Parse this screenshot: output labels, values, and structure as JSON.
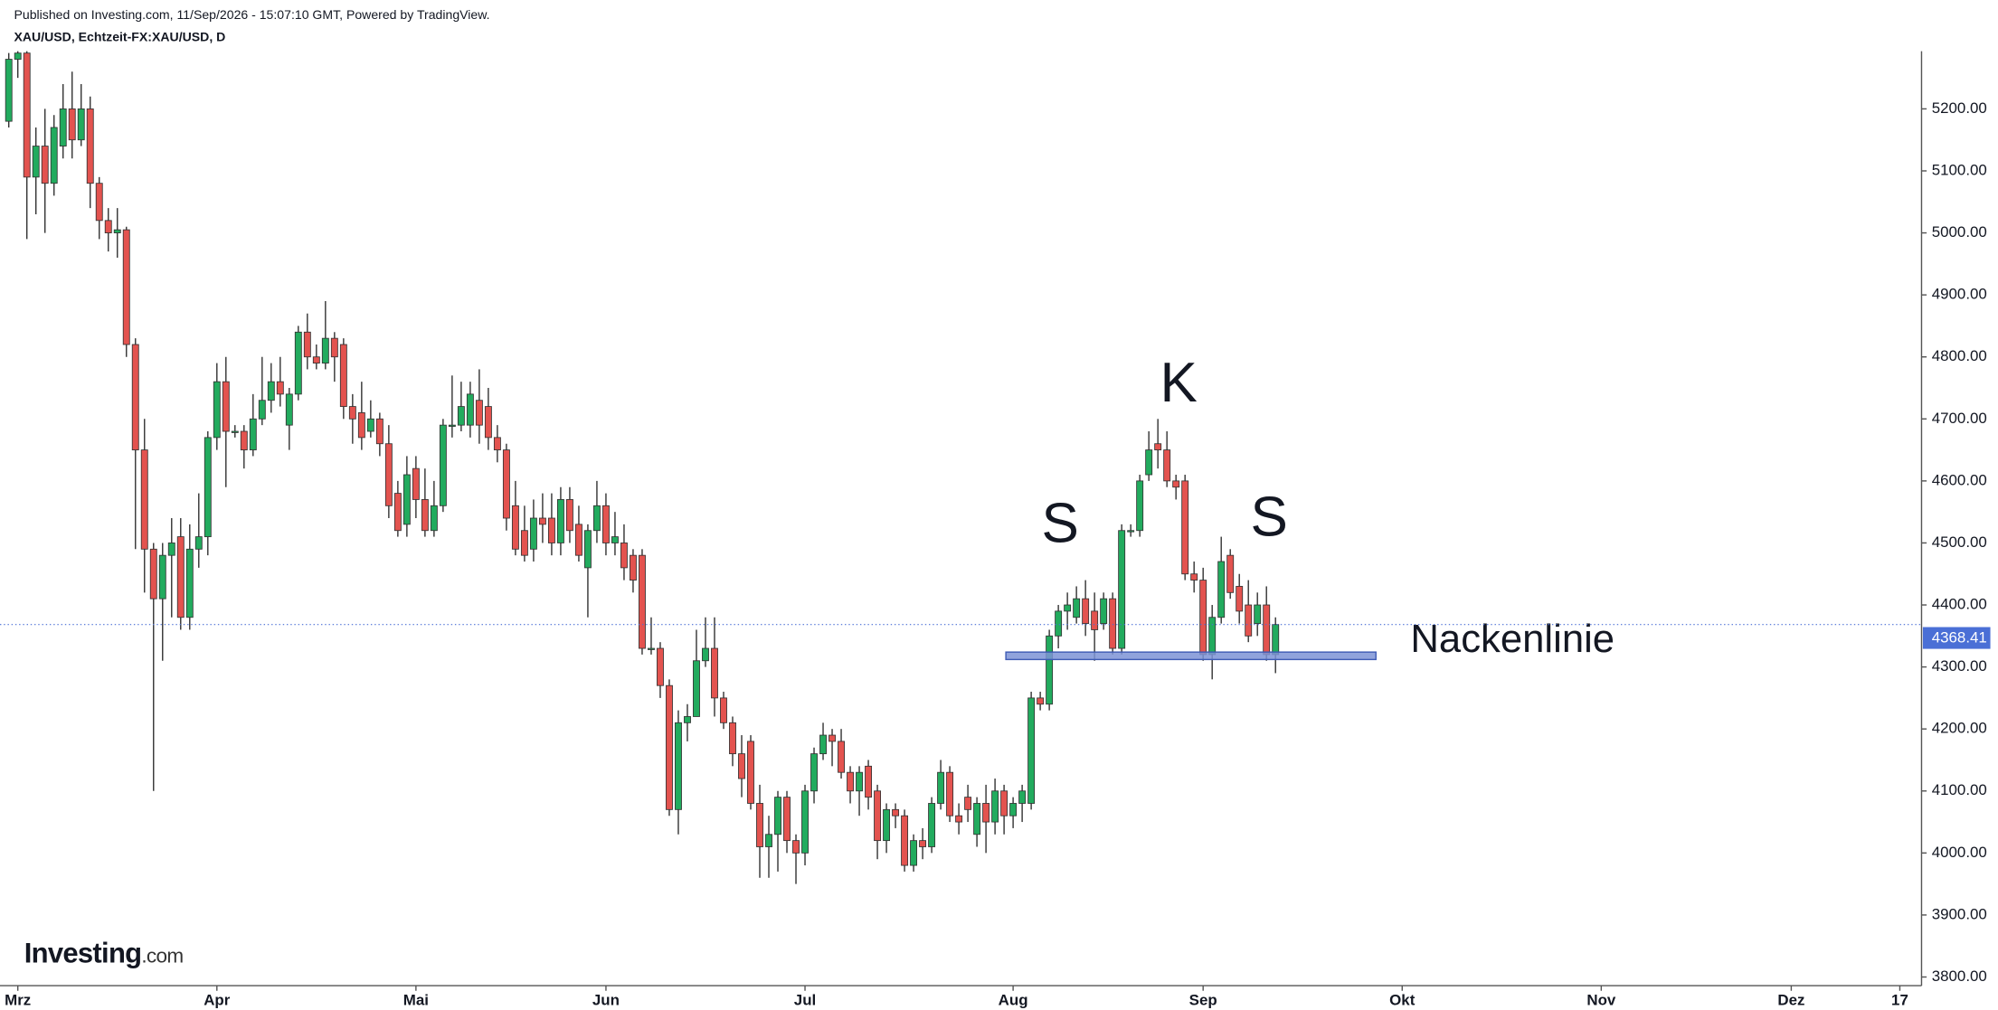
{
  "chart_data": {
    "type": "candlestick",
    "source": "Published on Investing.com, 11/Sep/2026 - 15:07:10 GMT, Powered by TradingView.",
    "title": "XAU/USD, Echtzeit-FX:XAU/USD, D",
    "logo": [
      "Investing",
      ".com"
    ],
    "up_color": "#22ab5e",
    "down_color": "#e3534f",
    "x": [
      -1,
      0,
      1,
      2,
      3,
      4,
      5,
      6,
      7,
      8,
      9,
      10,
      11,
      12,
      13,
      14,
      15,
      16,
      17,
      18,
      19,
      20,
      21,
      22,
      23,
      24,
      25,
      26,
      27,
      28,
      29,
      30,
      31,
      32,
      33,
      34,
      35,
      36,
      37,
      38,
      39,
      40,
      41,
      42,
      43,
      44,
      45,
      46,
      47,
      48,
      49,
      50,
      51,
      52,
      53,
      54,
      55,
      56,
      57,
      58,
      59,
      60,
      61,
      62,
      63,
      64,
      65,
      66,
      67,
      68,
      69,
      70,
      71,
      72,
      73,
      74,
      75,
      76,
      77,
      78,
      79,
      80,
      81,
      82,
      83,
      84,
      85,
      86,
      87,
      88,
      89,
      90,
      91,
      92,
      93,
      94,
      95,
      96,
      97,
      98,
      99,
      100,
      101,
      102,
      103,
      104,
      105,
      106,
      107,
      108,
      109,
      110,
      111,
      112,
      113,
      114,
      115,
      116,
      117,
      118,
      119,
      120,
      121,
      122,
      123,
      124,
      125,
      126,
      127,
      128,
      129,
      130,
      131,
      132,
      133,
      134,
      135,
      136,
      137,
      138,
      139
    ],
    "open": [
      5180,
      5280,
      5290,
      5090,
      5140,
      5080,
      5140,
      5200,
      5150,
      5200,
      5080,
      5020,
      5000,
      5005,
      4820,
      4650,
      4490,
      4410,
      4480,
      4510,
      4380,
      4490,
      4510,
      4670,
      4760,
      4680,
      4680,
      4650,
      4700,
      4730,
      4760,
      4690,
      4740,
      4840,
      4800,
      4790,
      4830,
      4820,
      4720,
      4710,
      4680,
      4700,
      4660,
      4580,
      4530,
      4620,
      4570,
      4520,
      4560,
      4690,
      4690,
      4690,
      4730,
      4720,
      4670,
      4650,
      4560,
      4520,
      4490,
      4540,
      4540,
      4500,
      4570,
      4530,
      4460,
      4520,
      4560,
      4500,
      4500,
      4480,
      4480,
      4330,
      4330,
      4270,
      4070,
      4210,
      4220,
      4310,
      4330,
      4250,
      4210,
      4160,
      4180,
      4080,
      4010,
      4030,
      4090,
      4020,
      4000,
      4100,
      4160,
      4190,
      4180,
      4130,
      4100,
      4140,
      4100,
      4020,
      4070,
      4060,
      3980,
      4020,
      4010,
      4080,
      4130,
      4060,
      4090,
      4030,
      4080,
      4050,
      4100,
      4060,
      4080,
      4080,
      4250,
      4240,
      4350,
      4390,
      4380,
      4410,
      4390,
      4370,
      4410,
      4330,
      4520,
      4520,
      4610,
      4660,
      4650,
      4600,
      4600,
      4450,
      4440,
      4320,
      4380,
      4480,
      4430,
      4400,
      4370,
      4400,
      4320
    ],
    "high": [
      5290,
      5330,
      5330,
      5170,
      5200,
      5190,
      5240,
      5260,
      5240,
      5220,
      5090,
      5040,
      5040,
      5010,
      4830,
      4700,
      4500,
      4500,
      4540,
      4540,
      4530,
      4580,
      4680,
      4790,
      4800,
      4690,
      4690,
      4740,
      4800,
      4790,
      4800,
      4750,
      4850,
      4870,
      4820,
      4890,
      4840,
      4830,
      4740,
      4760,
      4730,
      4710,
      4690,
      4600,
      4640,
      4640,
      4620,
      4600,
      4700,
      4770,
      4760,
      4760,
      4780,
      4750,
      4690,
      4660,
      4600,
      4560,
      4570,
      4580,
      4580,
      4590,
      4590,
      4560,
      4530,
      4600,
      4580,
      4550,
      4530,
      4490,
      4490,
      4380,
      4340,
      4280,
      4230,
      4240,
      4360,
      4380,
      4380,
      4260,
      4220,
      4190,
      4190,
      4110,
      4060,
      4100,
      4100,
      4030,
      4110,
      4170,
      4210,
      4200,
      4200,
      4140,
      4140,
      4150,
      4110,
      4080,
      4080,
      4070,
      4030,
      4040,
      4090,
      4150,
      4140,
      4080,
      4110,
      4090,
      4110,
      4120,
      4110,
      4090,
      4110,
      4260,
      4260,
      4360,
      4400,
      4420,
      4430,
      4440,
      4420,
      4420,
      4420,
      4530,
      4530,
      4610,
      4680,
      4700,
      4680,
      4610,
      4610,
      4470,
      4460,
      4400,
      4510,
      4490,
      4450,
      4440,
      4420,
      4430,
      4380
    ],
    "low": [
      5170,
      5250,
      4990,
      5030,
      5000,
      5060,
      5120,
      5120,
      5140,
      5040,
      4990,
      4970,
      4960,
      4800,
      4490,
      4420,
      4100,
      4310,
      4380,
      4360,
      4360,
      4460,
      4480,
      4650,
      4590,
      4670,
      4620,
      4640,
      4690,
      4710,
      4720,
      4650,
      4730,
      4780,
      4780,
      4780,
      4760,
      4700,
      4660,
      4650,
      4670,
      4640,
      4540,
      4510,
      4510,
      4540,
      4510,
      4510,
      4550,
      4670,
      4680,
      4670,
      4660,
      4650,
      4630,
      4520,
      4480,
      4470,
      4470,
      4500,
      4480,
      4480,
      4500,
      4470,
      4380,
      4500,
      4480,
      4480,
      4440,
      4420,
      4320,
      4320,
      4250,
      4060,
      4030,
      4180,
      4220,
      4300,
      4220,
      4200,
      4140,
      4090,
      4070,
      3960,
      3960,
      3970,
      4000,
      3950,
      3980,
      4080,
      4150,
      4140,
      4120,
      4080,
      4060,
      4070,
      3990,
      4000,
      4040,
      3970,
      3970,
      3990,
      4000,
      4070,
      4050,
      4030,
      4050,
      4010,
      4000,
      4030,
      4030,
      4040,
      4050,
      4070,
      4230,
      4230,
      4330,
      4360,
      4370,
      4350,
      4310,
      4360,
      4320,
      4320,
      4510,
      4510,
      4600,
      4620,
      4590,
      4570,
      4440,
      4420,
      4310,
      4280,
      4370,
      4410,
      4370,
      4340,
      4350,
      4310,
      4290
    ],
    "close": [
      5280,
      5290,
      5090,
      5140,
      5080,
      5170,
      5200,
      5150,
      5200,
      5080,
      5020,
      5000,
      5005,
      4820,
      4650,
      4490,
      4410,
      4480,
      4500,
      4380,
      4490,
      4510,
      4670,
      4760,
      4680,
      4680,
      4650,
      4700,
      4730,
      4760,
      4740,
      4740,
      4840,
      4800,
      4790,
      4830,
      4800,
      4720,
      4700,
      4670,
      4700,
      4660,
      4560,
      4520,
      4610,
      4570,
      4520,
      4560,
      4690,
      4690,
      4720,
      4740,
      4690,
      4670,
      4650,
      4540,
      4490,
      4480,
      4540,
      4530,
      4500,
      4570,
      4520,
      4480,
      4520,
      4560,
      4500,
      4510,
      4460,
      4440,
      4330,
      4330,
      4270,
      4070,
      4210,
      4220,
      4310,
      4330,
      4250,
      4210,
      4160,
      4120,
      4080,
      4010,
      4030,
      4090,
      4020,
      4000,
      4100,
      4160,
      4190,
      4180,
      4130,
      4100,
      4130,
      4090,
      4020,
      4070,
      4060,
      3980,
      4020,
      4010,
      4080,
      4130,
      4060,
      4050,
      4070,
      4080,
      4050,
      4100,
      4060,
      4080,
      4100,
      4250,
      4240,
      4350,
      4390,
      4400,
      4410,
      4370,
      4360,
      4410,
      4330,
      4520,
      4520,
      4600,
      4650,
      4650,
      4600,
      4590,
      4450,
      4440,
      4320,
      4380,
      4470,
      4420,
      4390,
      4350,
      4400,
      4320,
      4368.41
    ],
    "xlim": [
      -1.97,
      210.4
    ],
    "xticks": [
      {
        "value": 0,
        "label": "Mrz"
      },
      {
        "value": 22,
        "label": "Apr"
      },
      {
        "value": 44,
        "label": "Mai"
      },
      {
        "value": 65,
        "label": "Jun"
      },
      {
        "value": 87,
        "label": "Jul"
      },
      {
        "value": 110,
        "label": "Aug"
      },
      {
        "value": 131,
        "label": "Sep"
      },
      {
        "value": 153,
        "label": "Okt"
      },
      {
        "value": 175,
        "label": "Nov"
      },
      {
        "value": 196,
        "label": "Dez"
      },
      {
        "value": 208,
        "label": "17"
      }
    ],
    "ylim": [
      3786,
      5293
    ],
    "yticks": [
      {
        "value": 3800,
        "label": "3800.00"
      },
      {
        "value": 3900,
        "label": "3900.00"
      },
      {
        "value": 4000,
        "label": "4000.00"
      },
      {
        "value": 4100,
        "label": "4100.00"
      },
      {
        "value": 4200,
        "label": "4200.00"
      },
      {
        "value": 4300,
        "label": "4300.00"
      },
      {
        "value": 4400,
        "label": "4400.00"
      },
      {
        "value": 4500,
        "label": "4500.00"
      },
      {
        "value": 4600,
        "label": "4600.00"
      },
      {
        "value": 4700,
        "label": "4700.00"
      },
      {
        "value": 4800,
        "label": "4800.00"
      },
      {
        "value": 4900,
        "label": "4900.00"
      },
      {
        "value": 5000,
        "label": "5000.00"
      },
      {
        "value": 5100,
        "label": "5100.00"
      },
      {
        "value": 5200,
        "label": "5200.00"
      }
    ],
    "last_price": 4368.41,
    "last_price_color": "#4a6fd6",
    "annotations": [
      "S",
      "K",
      "S"
    ],
    "neckline": {
      "label": "Nackenlinie",
      "xlim": [
        109.2,
        150.1
      ],
      "ylim": [
        4312,
        4324
      ],
      "color": "#7d93d6"
    }
  }
}
